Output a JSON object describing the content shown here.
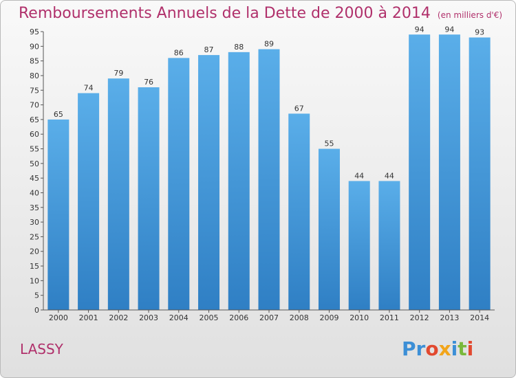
{
  "chart_data": {
    "type": "bar",
    "title": "Remboursements Annuels de la Dette de 2000 à 2014",
    "unit": "(en milliers d'€)",
    "categories": [
      "2000",
      "2001",
      "2002",
      "2003",
      "2004",
      "2005",
      "2006",
      "2007",
      "2008",
      "2009",
      "2010",
      "2011",
      "2012",
      "2013",
      "2014"
    ],
    "values": [
      65,
      74,
      79,
      76,
      86,
      87,
      88,
      89,
      67,
      55,
      44,
      44,
      94,
      94,
      93
    ],
    "ylim": [
      0,
      95
    ],
    "yticks": [
      0,
      5,
      10,
      15,
      20,
      25,
      30,
      35,
      40,
      45,
      50,
      55,
      60,
      65,
      70,
      75,
      80,
      85,
      90,
      95
    ],
    "xlabel": "",
    "ylabel": "",
    "grid": false,
    "bar_color": "#4da3e3"
  },
  "commune": "LASSY",
  "logo": {
    "parts": [
      "Pr",
      "o",
      "x",
      "i",
      "t",
      "i"
    ],
    "colors": [
      "#3c8fd6",
      "#e2492f",
      "#f2a51a",
      "#3c8fd6",
      "#79b83b",
      "#e2492f"
    ]
  }
}
